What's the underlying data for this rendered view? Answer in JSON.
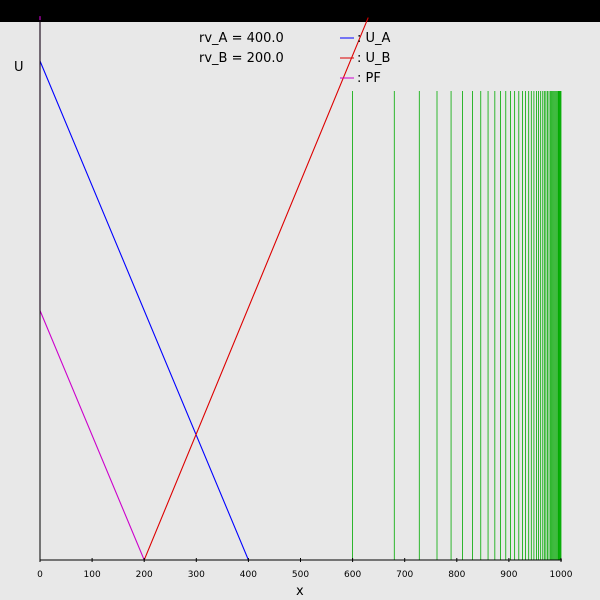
{
  "chart_data": {
    "type": "line",
    "ylabel": "U",
    "xlabel": "x",
    "xlim": [
      0,
      1000
    ],
    "ylim": [
      0,
      1
    ],
    "x_ticks": [
      "0",
      "100",
      "200",
      "300",
      "400",
      "500",
      "600",
      "700",
      "800",
      "900",
      "1000"
    ],
    "params": [
      {
        "label": "rv_A = 400.0"
      },
      {
        "label": "rv_B = 200.0"
      }
    ],
    "legend": [
      {
        "label": ": U_A",
        "color": "#0000ff"
      },
      {
        "label": ": U_B",
        "color": "#dd0000"
      },
      {
        "label": ": PF",
        "color": "#cc00cc"
      }
    ],
    "series": [
      {
        "name": ": U_A",
        "color": "#0000ff",
        "points": [
          [
            0,
            1.0
          ],
          [
            400,
            0
          ],
          [
            1000,
            0
          ]
        ]
      },
      {
        "name": ": U_B",
        "color": "#dd0000",
        "points": [
          [
            0,
            0
          ],
          [
            200,
            0
          ],
          [
            630,
            1.087
          ]
        ]
      },
      {
        "name": ": PF",
        "color": "#cc00cc",
        "points": [
          [
            0,
            1.09
          ],
          [
            0,
            0.5
          ],
          [
            200,
            0
          ],
          [
            1000,
            0
          ]
        ]
      }
    ],
    "vertical_lines": {
      "color": "#00aa00",
      "ymax": 0.94,
      "x": [
        600,
        680,
        728,
        762,
        789,
        811,
        830,
        846,
        860,
        873,
        884,
        894,
        903,
        911,
        919,
        926,
        932,
        938,
        943,
        948,
        953,
        957,
        961,
        965,
        968,
        971,
        974,
        977,
        980,
        982,
        984,
        986,
        988,
        990,
        992,
        993,
        995,
        996,
        997,
        998,
        999,
        1000
      ]
    }
  }
}
